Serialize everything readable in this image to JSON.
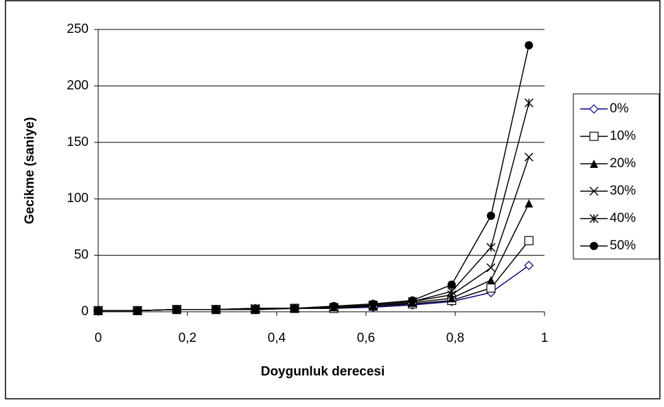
{
  "chart_data": {
    "type": "line",
    "x_label": "Doygunluk derecesi",
    "y_label": "Gecikme (saniye)",
    "x": [
      0,
      0.088,
      0.176,
      0.264,
      0.352,
      0.44,
      0.528,
      0.616,
      0.704,
      0.792,
      0.88,
      0.965
    ],
    "series": [
      {
        "name": "0%",
        "color": "#000080",
        "marker": "diamond-open",
        "values": [
          1,
          1,
          2,
          2,
          2,
          3,
          3,
          4,
          6,
          9,
          17,
          41
        ]
      },
      {
        "name": "10%",
        "color": "#000000",
        "marker": "square-open",
        "values": [
          1,
          1,
          2,
          2,
          2,
          3,
          3,
          5,
          7,
          10,
          21,
          63
        ]
      },
      {
        "name": "20%",
        "color": "#000000",
        "marker": "triangle",
        "values": [
          1,
          1,
          2,
          2,
          2,
          3,
          4,
          5,
          8,
          12,
          28,
          96
        ]
      },
      {
        "name": "30%",
        "color": "#000000",
        "marker": "x",
        "values": [
          1,
          1,
          2,
          2,
          3,
          3,
          4,
          6,
          9,
          15,
          39,
          137
        ]
      },
      {
        "name": "40%",
        "color": "#000000",
        "marker": "asterisk",
        "values": [
          1,
          1,
          2,
          2,
          3,
          3,
          4,
          6,
          9,
          18,
          57,
          185
        ]
      },
      {
        "name": "50%",
        "color": "#000000",
        "marker": "circle",
        "values": [
          1,
          1,
          2,
          2,
          3,
          3,
          5,
          7,
          10,
          24,
          85,
          236
        ]
      }
    ],
    "xlim": [
      0,
      1
    ],
    "xticks": [
      0,
      {
        "value": 0.2,
        "label": "0,2"
      },
      {
        "value": 0.4,
        "label": "0,4"
      },
      {
        "value": 0.6,
        "label": "0,6"
      },
      {
        "value": 0.8,
        "label": "0,8"
      },
      1
    ],
    "ylim": [
      0,
      250
    ],
    "yticks": [
      0,
      50,
      100,
      150,
      200,
      250
    ],
    "grid": true,
    "legend": "right"
  }
}
